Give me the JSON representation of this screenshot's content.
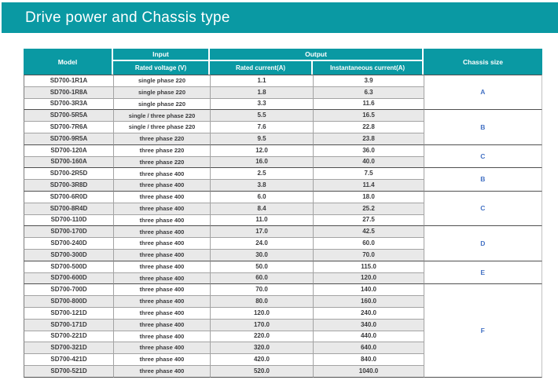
{
  "title": "Drive power and Chassis type",
  "colors": {
    "teal": "#0a99a3",
    "chassis_text": "#4472c4",
    "row_alt": "#e9e9e9",
    "text": "#3a3a3c"
  },
  "table": {
    "headers": {
      "model": "Model",
      "input": "Input",
      "output": "Output",
      "chassis": "Chassis size",
      "rated_voltage": "Rated voltage (V)",
      "rated_current": "Rated current(A)",
      "instantaneous_current": "Instantaneous current(A)"
    },
    "rows": [
      {
        "model": "SD700-1R1A",
        "voltage": "single phase 220",
        "rated": "1.1",
        "instant": "3.9"
      },
      {
        "model": "SD700-1R8A",
        "voltage": "single phase 220",
        "rated": "1.8",
        "instant": "6.3"
      },
      {
        "model": "SD700-3R3A",
        "voltage": "single phase 220",
        "rated": "3.3",
        "instant": "11.6"
      },
      {
        "model": "SD700-5R5A",
        "voltage": "single / three phase 220",
        "rated": "5.5",
        "instant": "16.5"
      },
      {
        "model": "SD700-7R6A",
        "voltage": "single / three phase 220",
        "rated": "7.6",
        "instant": "22.8"
      },
      {
        "model": "SD700-9R5A",
        "voltage": "three phase 220",
        "rated": "9.5",
        "instant": "23.8"
      },
      {
        "model": "SD700-120A",
        "voltage": "three phase 220",
        "rated": "12.0",
        "instant": "36.0"
      },
      {
        "model": "SD700-160A",
        "voltage": "three phase 220",
        "rated": "16.0",
        "instant": "40.0"
      },
      {
        "model": "SD700-2R5D",
        "voltage": "three phase 400",
        "rated": "2.5",
        "instant": "7.5"
      },
      {
        "model": "SD700-3R8D",
        "voltage": "three phase 400",
        "rated": "3.8",
        "instant": "11.4"
      },
      {
        "model": "SD700-6R0D",
        "voltage": "three phase 400",
        "rated": "6.0",
        "instant": "18.0"
      },
      {
        "model": "SD700-8R4D",
        "voltage": "three phase 400",
        "rated": "8.4",
        "instant": "25.2"
      },
      {
        "model": "SD700-110D",
        "voltage": "three phase 400",
        "rated": "11.0",
        "instant": "27.5"
      },
      {
        "model": "SD700-170D",
        "voltage": "three phase 400",
        "rated": "17.0",
        "instant": "42.5"
      },
      {
        "model": "SD700-240D",
        "voltage": "three phase 400",
        "rated": "24.0",
        "instant": "60.0"
      },
      {
        "model": "SD700-300D",
        "voltage": "three phase 400",
        "rated": "30.0",
        "instant": "70.0"
      },
      {
        "model": "SD700-500D",
        "voltage": "three phase 400",
        "rated": "50.0",
        "instant": "115.0"
      },
      {
        "model": "SD700-600D",
        "voltage": "three phase 400",
        "rated": "60.0",
        "instant": "120.0"
      },
      {
        "model": "SD700-700D",
        "voltage": "three phase 400",
        "rated": "70.0",
        "instant": "140.0"
      },
      {
        "model": "SD700-800D",
        "voltage": "three phase 400",
        "rated": "80.0",
        "instant": "160.0"
      },
      {
        "model": "SD700-121D",
        "voltage": "three phase 400",
        "rated": "120.0",
        "instant": "240.0"
      },
      {
        "model": "SD700-171D",
        "voltage": "three phase 400",
        "rated": "170.0",
        "instant": "340.0"
      },
      {
        "model": "SD700-221D",
        "voltage": "three phase 400",
        "rated": "220.0",
        "instant": "440.0"
      },
      {
        "model": "SD700-321D",
        "voltage": "three phase 400",
        "rated": "320.0",
        "instant": "640.0"
      },
      {
        "model": "SD700-421D",
        "voltage": "three phase 400",
        "rated": "420.0",
        "instant": "840.0"
      },
      {
        "model": "SD700-521D",
        "voltage": "three phase 400",
        "rated": "520.0",
        "instant": "1040.0"
      }
    ],
    "chassis_groups": [
      {
        "label": "A",
        "start": 0,
        "count": 3
      },
      {
        "label": "B",
        "start": 3,
        "count": 3
      },
      {
        "label": "C",
        "start": 6,
        "count": 2
      },
      {
        "label": "B",
        "start": 8,
        "count": 2
      },
      {
        "label": "C",
        "start": 10,
        "count": 3
      },
      {
        "label": "D",
        "start": 13,
        "count": 3
      },
      {
        "label": "E",
        "start": 16,
        "count": 2
      },
      {
        "label": "F",
        "start": 18,
        "count": 8
      }
    ]
  }
}
